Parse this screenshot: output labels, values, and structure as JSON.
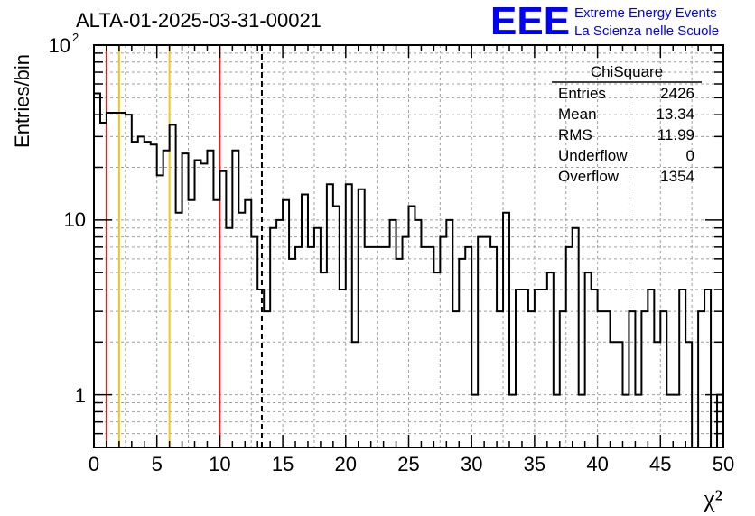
{
  "chart_data": {
    "type": "bar",
    "title": "ALTA-01-2025-03-31-00021",
    "xlabel": "χ²",
    "ylabel": "Entries/bin",
    "xlim": [
      0,
      50
    ],
    "ylim": [
      0.5,
      100
    ],
    "yscale": "log",
    "bin_width": 0.5,
    "grid": true,
    "x_ticks": [
      0,
      5,
      10,
      15,
      20,
      25,
      30,
      35,
      40,
      45,
      50
    ],
    "x_tick_labels": [
      "0",
      "5",
      "10",
      "15",
      "20",
      "25",
      "30",
      "35",
      "40",
      "45",
      "50"
    ],
    "y_tick_labels": {
      "low": "1",
      "mid": "10",
      "top_base": "10",
      "top_exp": "2"
    },
    "values": [
      53,
      36,
      41,
      41,
      41,
      40,
      28,
      30,
      28,
      27,
      18,
      25,
      35,
      11,
      24,
      13,
      22,
      21,
      25,
      13,
      19,
      9,
      25,
      11,
      13,
      8,
      4,
      3,
      9,
      10,
      13,
      6,
      7,
      14,
      7,
      9,
      5,
      16,
      12,
      4,
      16,
      2,
      15,
      7,
      7,
      7,
      7,
      10,
      6,
      8,
      12,
      10,
      7,
      7,
      5,
      8,
      10,
      3,
      6,
      7,
      1,
      8,
      8,
      7,
      3,
      11,
      1,
      4,
      4,
      3,
      4,
      4,
      5,
      1,
      3,
      7,
      9,
      1,
      5,
      4,
      3,
      3,
      2,
      2,
      1,
      3,
      1,
      3,
      4,
      2,
      3,
      1,
      1,
      4,
      2,
      0,
      3,
      4,
      0,
      1
    ],
    "vlines": [
      {
        "x": 1,
        "color": "#e0201a",
        "style": "solid"
      },
      {
        "x": 2,
        "color": "#f5c518",
        "style": "solid"
      },
      {
        "x": 6,
        "color": "#f5c518",
        "style": "solid"
      },
      {
        "x": 10,
        "color": "#e0201a",
        "style": "solid"
      },
      {
        "x": 13.34,
        "color": "#000000",
        "style": "dashed"
      }
    ],
    "stats": {
      "name": "ChiSquare",
      "rows": [
        {
          "label": "Entries",
          "value": "2426"
        },
        {
          "label": "Mean",
          "value": "13.34"
        },
        {
          "label": "RMS",
          "value": "11.99"
        },
        {
          "label": "Underflow",
          "value": "0"
        },
        {
          "label": "Overflow",
          "value": "1354"
        }
      ]
    }
  },
  "brand": {
    "logo": "EEE",
    "line1": "Extreme Energy Events",
    "line2": "La Scienza nelle Scuole",
    "color": "#0000ff"
  },
  "colors": {
    "histogram": "#000000",
    "grid": "#a0a0a0",
    "frame": "#000000"
  }
}
